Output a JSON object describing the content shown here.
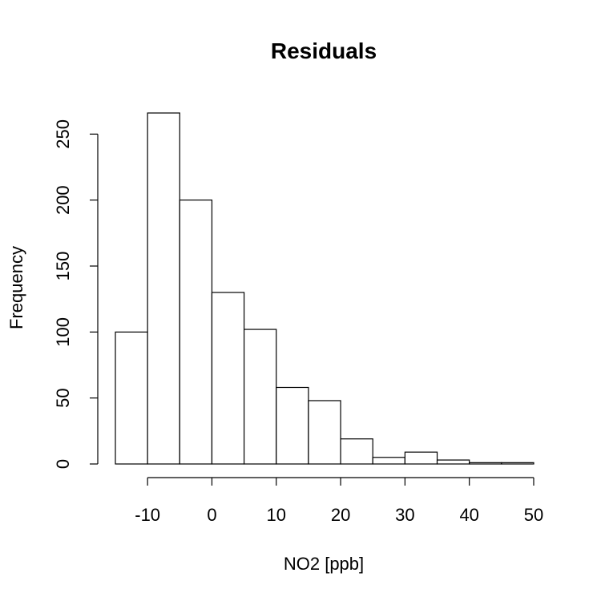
{
  "chart_data": {
    "type": "bar",
    "title": "Residuals",
    "xlabel": "NO2 [ppb]",
    "ylabel": "Frequency",
    "bin_edges": [
      -15,
      -10,
      -5,
      0,
      5,
      10,
      15,
      20,
      25,
      30,
      35,
      40,
      45,
      50
    ],
    "values": [
      100,
      266,
      200,
      130,
      102,
      58,
      48,
      19,
      5,
      9,
      3,
      1,
      1
    ],
    "xlim": [
      -15,
      50
    ],
    "ylim": [
      0,
      266
    ],
    "x_ticks": [
      -10,
      0,
      10,
      20,
      30,
      40,
      50
    ],
    "y_ticks": [
      0,
      50,
      100,
      150,
      200,
      250
    ],
    "grid": false,
    "legend": "none"
  },
  "colors": {
    "bar_fill": "#ffffff",
    "bar_stroke": "#000000",
    "background": "#ffffff"
  }
}
